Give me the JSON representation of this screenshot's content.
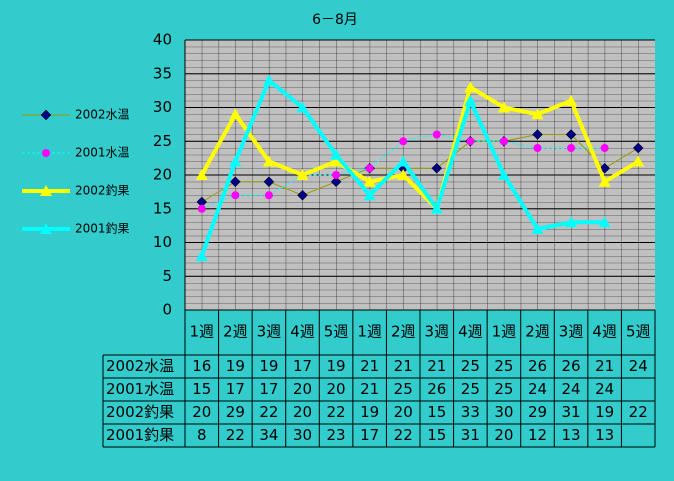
{
  "chart_data": {
    "type": "line",
    "title": "6－8月",
    "categories": [
      "1週",
      "2週",
      "3週",
      "4週",
      "5週",
      "1週",
      "2週",
      "3週",
      "4週",
      "1週",
      "2週",
      "3週",
      "4週",
      "5週"
    ],
    "ylim": [
      0,
      40
    ],
    "yticks": [
      0,
      5,
      10,
      15,
      20,
      25,
      30,
      35,
      40
    ],
    "grid": true,
    "legend": "left",
    "background": "#33cccc",
    "plot_background": "#c0c0c0",
    "series": [
      {
        "name": "2002水温",
        "color": "#999900",
        "marker": "diamond",
        "marker_color": "#000080",
        "width": 1,
        "dashed": false,
        "values": [
          16,
          19,
          19,
          17,
          19,
          21,
          21,
          21,
          25,
          25,
          26,
          26,
          21,
          24
        ]
      },
      {
        "name": "2001水温",
        "color": "#00ffff",
        "marker": "circle",
        "marker_color": "#ff00ff",
        "width": 1,
        "dashed": true,
        "values": [
          15,
          17,
          17,
          20,
          20,
          21,
          25,
          26,
          25,
          25,
          24,
          24,
          24,
          null
        ]
      },
      {
        "name": "2002釣果",
        "color": "#ffff00",
        "marker": "triangle",
        "marker_color": "#ffff00",
        "width": 4,
        "dashed": false,
        "values": [
          20,
          29,
          22,
          20,
          22,
          19,
          20,
          15,
          33,
          30,
          29,
          31,
          19,
          22
        ]
      },
      {
        "name": "2001釣果",
        "color": "#00ffff",
        "marker": "triangle",
        "marker_color": "#00ffff",
        "width": 4,
        "dashed": false,
        "values": [
          8,
          22,
          34,
          30,
          23,
          17,
          22,
          15,
          31,
          20,
          12,
          13,
          13,
          null
        ]
      }
    ]
  }
}
